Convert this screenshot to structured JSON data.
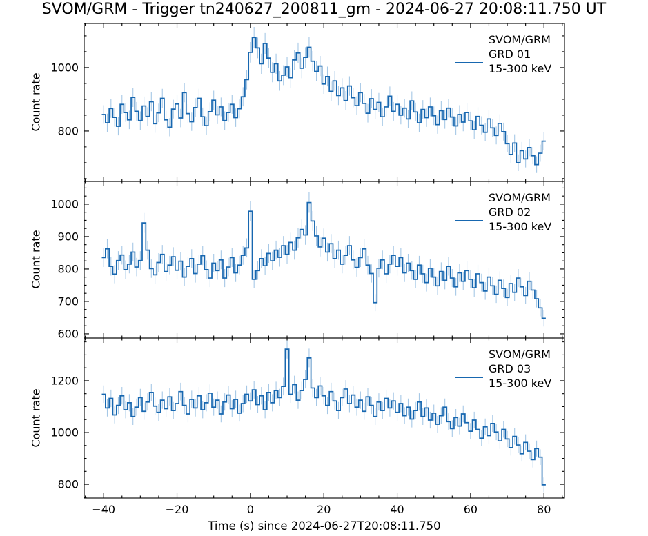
{
  "title": "SVOM/GRM - Trigger tn240627_200811_gm - 2024-06-27 20:08:11.750 UT",
  "chart_data": {
    "type": "line",
    "subtype": "step-lightcurve-with-errorbars",
    "title": "SVOM/GRM - Trigger tn240627_200811_gm - 2024-06-27 20:08:11.750 UT",
    "xlabel": "Time (s) since 2024-06-27T20:08:11.750",
    "ylabel": "Count rate",
    "grid": false,
    "legend_position": "upper right inside each panel",
    "colors": {
      "line": "#1767b0",
      "errorbar": "#a6c8e6",
      "axis": "#000000",
      "background": "#ffffff"
    },
    "error_model": "err = error_factor * sqrt(rate)",
    "error_factor": 1.0,
    "time": {
      "start": -40,
      "step": 1,
      "end": 80,
      "unit": "s"
    },
    "xlim": [
      -45.3,
      85.6
    ],
    "x_major_ticks": [
      -40,
      -20,
      0,
      20,
      40,
      60,
      80
    ],
    "x_minor_step": 5,
    "panels": [
      {
        "detector": "GRD 01",
        "legend_lines": [
          "SVOM/GRM",
          "GRD 01",
          "15-300 keV"
        ],
        "ylim": [
          641,
          1139
        ],
        "y_major_ticks": [
          800,
          1000
        ],
        "y_minor_step": 50,
        "rates": [
          852,
          826,
          871,
          843,
          815,
          884,
          858,
          835,
          906,
          862,
          833,
          879,
          846,
          892,
          823,
          857,
          903,
          835,
          812,
          869,
          885,
          841,
          921,
          855,
          829,
          874,
          903,
          845,
          817,
          861,
          897,
          851,
          876,
          833,
          858,
          884,
          842,
          870,
          908,
          962,
          1048,
          1095,
          1062,
          1012,
          1076,
          1030,
          985,
          1012,
          958,
          976,
          1002,
          968,
          1024,
          1046,
          998,
          1032,
          1064,
          1020,
          988,
          1005,
          948,
          972,
          925,
          958,
          912,
          936,
          896,
          942,
          905,
          880,
          921,
          887,
          856,
          902,
          868,
          890,
          845,
          876,
          910,
          862,
          884,
          850,
          872,
          838,
          895,
          860,
          826,
          868,
          842,
          876,
          848,
          820,
          864,
          836,
          872,
          844,
          816,
          852,
          828,
          858,
          832,
          804,
          846,
          818,
          796,
          838,
          810,
          786,
          824,
          798,
          760,
          726,
          762,
          700,
          738,
          712,
          748,
          722,
          694,
          730,
          768
        ]
      },
      {
        "detector": "GRD 02",
        "legend_lines": [
          "SVOM/GRM",
          "GRD 02",
          "15-300 keV"
        ],
        "ylim": [
          587,
          1070
        ],
        "y_major_ticks": [
          600,
          700,
          800,
          900,
          1000
        ],
        "y_minor_step": 25,
        "rates": [
          835,
          862,
          808,
          784,
          826,
          843,
          798,
          815,
          852,
          806,
          826,
          942,
          858,
          801,
          782,
          820,
          845,
          792,
          812,
          838,
          796,
          824,
          775,
          808,
          832,
          786,
          815,
          841,
          798,
          772,
          818,
          795,
          828,
          772,
          806,
          835,
          788,
          812,
          842,
          865,
          978,
          768,
          795,
          832,
          810,
          848,
          825,
          858,
          836,
          872,
          845,
          882,
          858,
          896,
          922,
          905,
          1005,
          948,
          902,
          868,
          895,
          852,
          878,
          832,
          858,
          815,
          842,
          872,
          828,
          805,
          835,
          862,
          812,
          786,
          696,
          802,
          828,
          785,
          815,
          842,
          808,
          835,
          788,
          818,
          795,
          768,
          812,
          785,
          758,
          802,
          775,
          748,
          792,
          765,
          808,
          772,
          745,
          788,
          762,
          795,
          768,
          742,
          785,
          758,
          732,
          775,
          748,
          722,
          765,
          740,
          712,
          755,
          728,
          772,
          745,
          718,
          762,
          735,
          708,
          680,
          648
        ]
      },
      {
        "detector": "GRD 03",
        "legend_lines": [
          "SVOM/GRM",
          "GRD 03",
          "15-300 keV"
        ],
        "ylim": [
          747,
          1365
        ],
        "y_major_ticks": [
          800,
          1000,
          1200
        ],
        "y_minor_step": 50,
        "rates": [
          1148,
          1095,
          1132,
          1068,
          1105,
          1142,
          1088,
          1115,
          1062,
          1098,
          1135,
          1082,
          1118,
          1155,
          1102,
          1078,
          1125,
          1092,
          1138,
          1085,
          1112,
          1158,
          1105,
          1072,
          1128,
          1095,
          1142,
          1088,
          1115,
          1152,
          1098,
          1125,
          1072,
          1118,
          1145,
          1092,
          1128,
          1075,
          1112,
          1148,
          1122,
          1165,
          1108,
          1142,
          1088,
          1155,
          1115,
          1162,
          1135,
          1178,
          1322,
          1148,
          1185,
          1125,
          1162,
          1205,
          1288,
          1172,
          1135,
          1180,
          1142,
          1105,
          1158,
          1122,
          1085,
          1135,
          1168,
          1112,
          1145,
          1098,
          1125,
          1082,
          1138,
          1105,
          1062,
          1118,
          1085,
          1132,
          1095,
          1122,
          1078,
          1112,
          1065,
          1098,
          1052,
          1085,
          1118,
          1062,
          1095,
          1048,
          1075,
          1032,
          1065,
          1098,
          1042,
          1015,
          1058,
          1025,
          1072,
          1038,
          1005,
          1048,
          1012,
          978,
          1022,
          988,
          1035,
          1002,
          968,
          1012,
          975,
          942,
          985,
          952,
          918,
          962,
          928,
          895,
          938,
          905,
          798
        ]
      }
    ]
  }
}
